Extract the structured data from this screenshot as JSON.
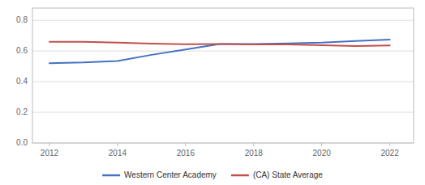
{
  "chart_data": {
    "type": "line",
    "x": [
      2012,
      2013,
      2014,
      2015,
      2016,
      2017,
      2018,
      2019,
      2020,
      2021,
      2022
    ],
    "series": [
      {
        "name": "Western Center Academy",
        "color": "#4472c4",
        "values": [
          0.52,
          0.525,
          0.535,
          0.575,
          0.61,
          0.645,
          0.645,
          0.65,
          0.655,
          0.665,
          0.675
        ]
      },
      {
        "name": "(CA) State Average",
        "color": "#c0504d",
        "values": [
          0.66,
          0.66,
          0.655,
          0.648,
          0.644,
          0.645,
          0.643,
          0.643,
          0.638,
          0.632,
          0.636
        ]
      }
    ],
    "xlim": [
      2011.5,
      2022.7
    ],
    "ylim": [
      0,
      0.88
    ],
    "xticks": [
      2012,
      2014,
      2016,
      2018,
      2020,
      2022
    ],
    "yticks": [
      {
        "value": 0,
        "label": "0.0"
      },
      0.2,
      0.4,
      0.6,
      0.8
    ],
    "grid": true,
    "legend": "bottom"
  }
}
